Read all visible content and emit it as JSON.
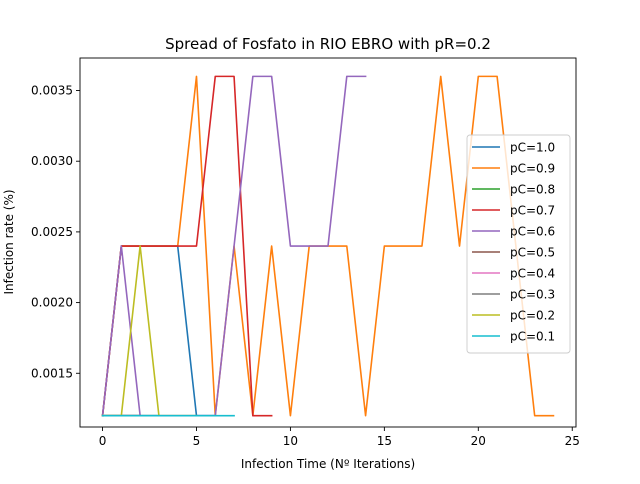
{
  "chart_data": {
    "type": "line",
    "title": "Spread of Fosfato in RIO EBRO with pR=0.2",
    "xlabel": "Infection Time (Nº Iterations)",
    "ylabel": "Infection rate (%)",
    "xlim": [
      -1.2,
      25.2
    ],
    "ylim": [
      0.00112,
      0.00373
    ],
    "xticks": [
      0,
      5,
      10,
      15,
      20,
      25
    ],
    "xtick_labels": [
      "0",
      "5",
      "10",
      "15",
      "20",
      "25"
    ],
    "yticks": [
      0.0015,
      0.002,
      0.0025,
      0.003,
      0.0035
    ],
    "ytick_labels": [
      "0.0015",
      "0.0020",
      "0.0025",
      "0.0030",
      "0.0035"
    ],
    "grid": false,
    "legend_position": "center-right",
    "series": [
      {
        "name": "pC=1.0",
        "color": "#1f77b4",
        "x": [
          0,
          1,
          2,
          3,
          4,
          5,
          6
        ],
        "y": [
          0.0012,
          0.0024,
          0.0024,
          0.0024,
          0.0024,
          0.0012,
          0.0012
        ]
      },
      {
        "name": "pC=0.9",
        "color": "#ff7f0e",
        "x": [
          0,
          1,
          2,
          3,
          4,
          5,
          6,
          7,
          8,
          9,
          10,
          11,
          12,
          13,
          14,
          15,
          16,
          17,
          18,
          19,
          20,
          21,
          22,
          23,
          24
        ],
        "y": [
          0.0012,
          0.0024,
          0.0024,
          0.0024,
          0.0024,
          0.0036,
          0.0012,
          0.0024,
          0.0012,
          0.0024,
          0.0012,
          0.0024,
          0.0024,
          0.0024,
          0.0012,
          0.0024,
          0.0024,
          0.0024,
          0.0036,
          0.0024,
          0.0036,
          0.0036,
          0.0024,
          0.0012,
          0.0012
        ]
      },
      {
        "name": "pC=0.8",
        "color": "#2ca02c",
        "x": [
          0,
          1,
          2,
          3
        ],
        "y": [
          0.0012,
          0.0012,
          0.0012,
          0.0012
        ]
      },
      {
        "name": "pC=0.7",
        "color": "#d62728",
        "x": [
          0,
          1,
          2,
          3,
          4,
          5,
          6,
          7,
          8,
          9
        ],
        "y": [
          0.0012,
          0.0024,
          0.0024,
          0.0024,
          0.0024,
          0.0024,
          0.0036,
          0.0036,
          0.0012,
          0.0012
        ]
      },
      {
        "name": "pC=0.6",
        "color": "#9467bd",
        "x": [
          0,
          1,
          2,
          3,
          4,
          5,
          6,
          7,
          8,
          9,
          10,
          11,
          12,
          13,
          14
        ],
        "y": [
          0.0012,
          0.0024,
          0.0012,
          0.0012,
          0.0012,
          0.0012,
          0.0012,
          0.0024,
          0.0036,
          0.0036,
          0.0024,
          0.0024,
          0.0024,
          0.0036,
          0.0036
        ]
      },
      {
        "name": "pC=0.5",
        "color": "#8c564b",
        "x": [
          0,
          1,
          2
        ],
        "y": [
          0.0012,
          0.0012,
          0.0012
        ]
      },
      {
        "name": "pC=0.4",
        "color": "#e377c2",
        "x": [
          0,
          1,
          2
        ],
        "y": [
          0.0012,
          0.0012,
          0.0012
        ]
      },
      {
        "name": "pC=0.3",
        "color": "#7f7f7f",
        "x": [
          0,
          1,
          2
        ],
        "y": [
          0.0012,
          0.0012,
          0.0012
        ]
      },
      {
        "name": "pC=0.2",
        "color": "#bcbd22",
        "x": [
          0,
          1,
          2,
          3,
          4,
          5
        ],
        "y": [
          0.0012,
          0.0012,
          0.0024,
          0.0012,
          0.0012,
          0.0012
        ]
      },
      {
        "name": "pC=0.1",
        "color": "#17becf",
        "x": [
          0,
          1,
          2,
          3,
          4,
          5,
          6,
          7
        ],
        "y": [
          0.0012,
          0.0012,
          0.0012,
          0.0012,
          0.0012,
          0.0012,
          0.0012,
          0.0012
        ]
      }
    ]
  }
}
